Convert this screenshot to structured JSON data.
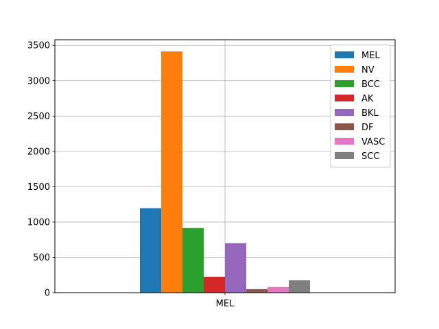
{
  "chart_data": {
    "type": "bar",
    "title": "",
    "xlabel": "",
    "ylabel": "",
    "categories": [
      "MEL"
    ],
    "ylim": [
      0,
      3580
    ],
    "yticks": [
      0,
      500,
      1000,
      1500,
      2000,
      2500,
      3000,
      3500
    ],
    "grid": true,
    "legend_position": "top-right",
    "series": [
      {
        "name": "MEL",
        "color": "#1f77b4",
        "values": [
          1195
        ]
      },
      {
        "name": "NV",
        "color": "#ff7f0e",
        "values": [
          3415
        ]
      },
      {
        "name": "BCC",
        "color": "#2ca02c",
        "values": [
          915
        ]
      },
      {
        "name": "AK",
        "color": "#d62728",
        "values": [
          225
        ]
      },
      {
        "name": "BKL",
        "color": "#9467bd",
        "values": [
          700
        ]
      },
      {
        "name": "DF",
        "color": "#8c564b",
        "values": [
          50
        ]
      },
      {
        "name": "VASC",
        "color": "#e377c2",
        "values": [
          80
        ]
      },
      {
        "name": "SCC",
        "color": "#7f7f7f",
        "values": [
          175
        ]
      }
    ]
  }
}
